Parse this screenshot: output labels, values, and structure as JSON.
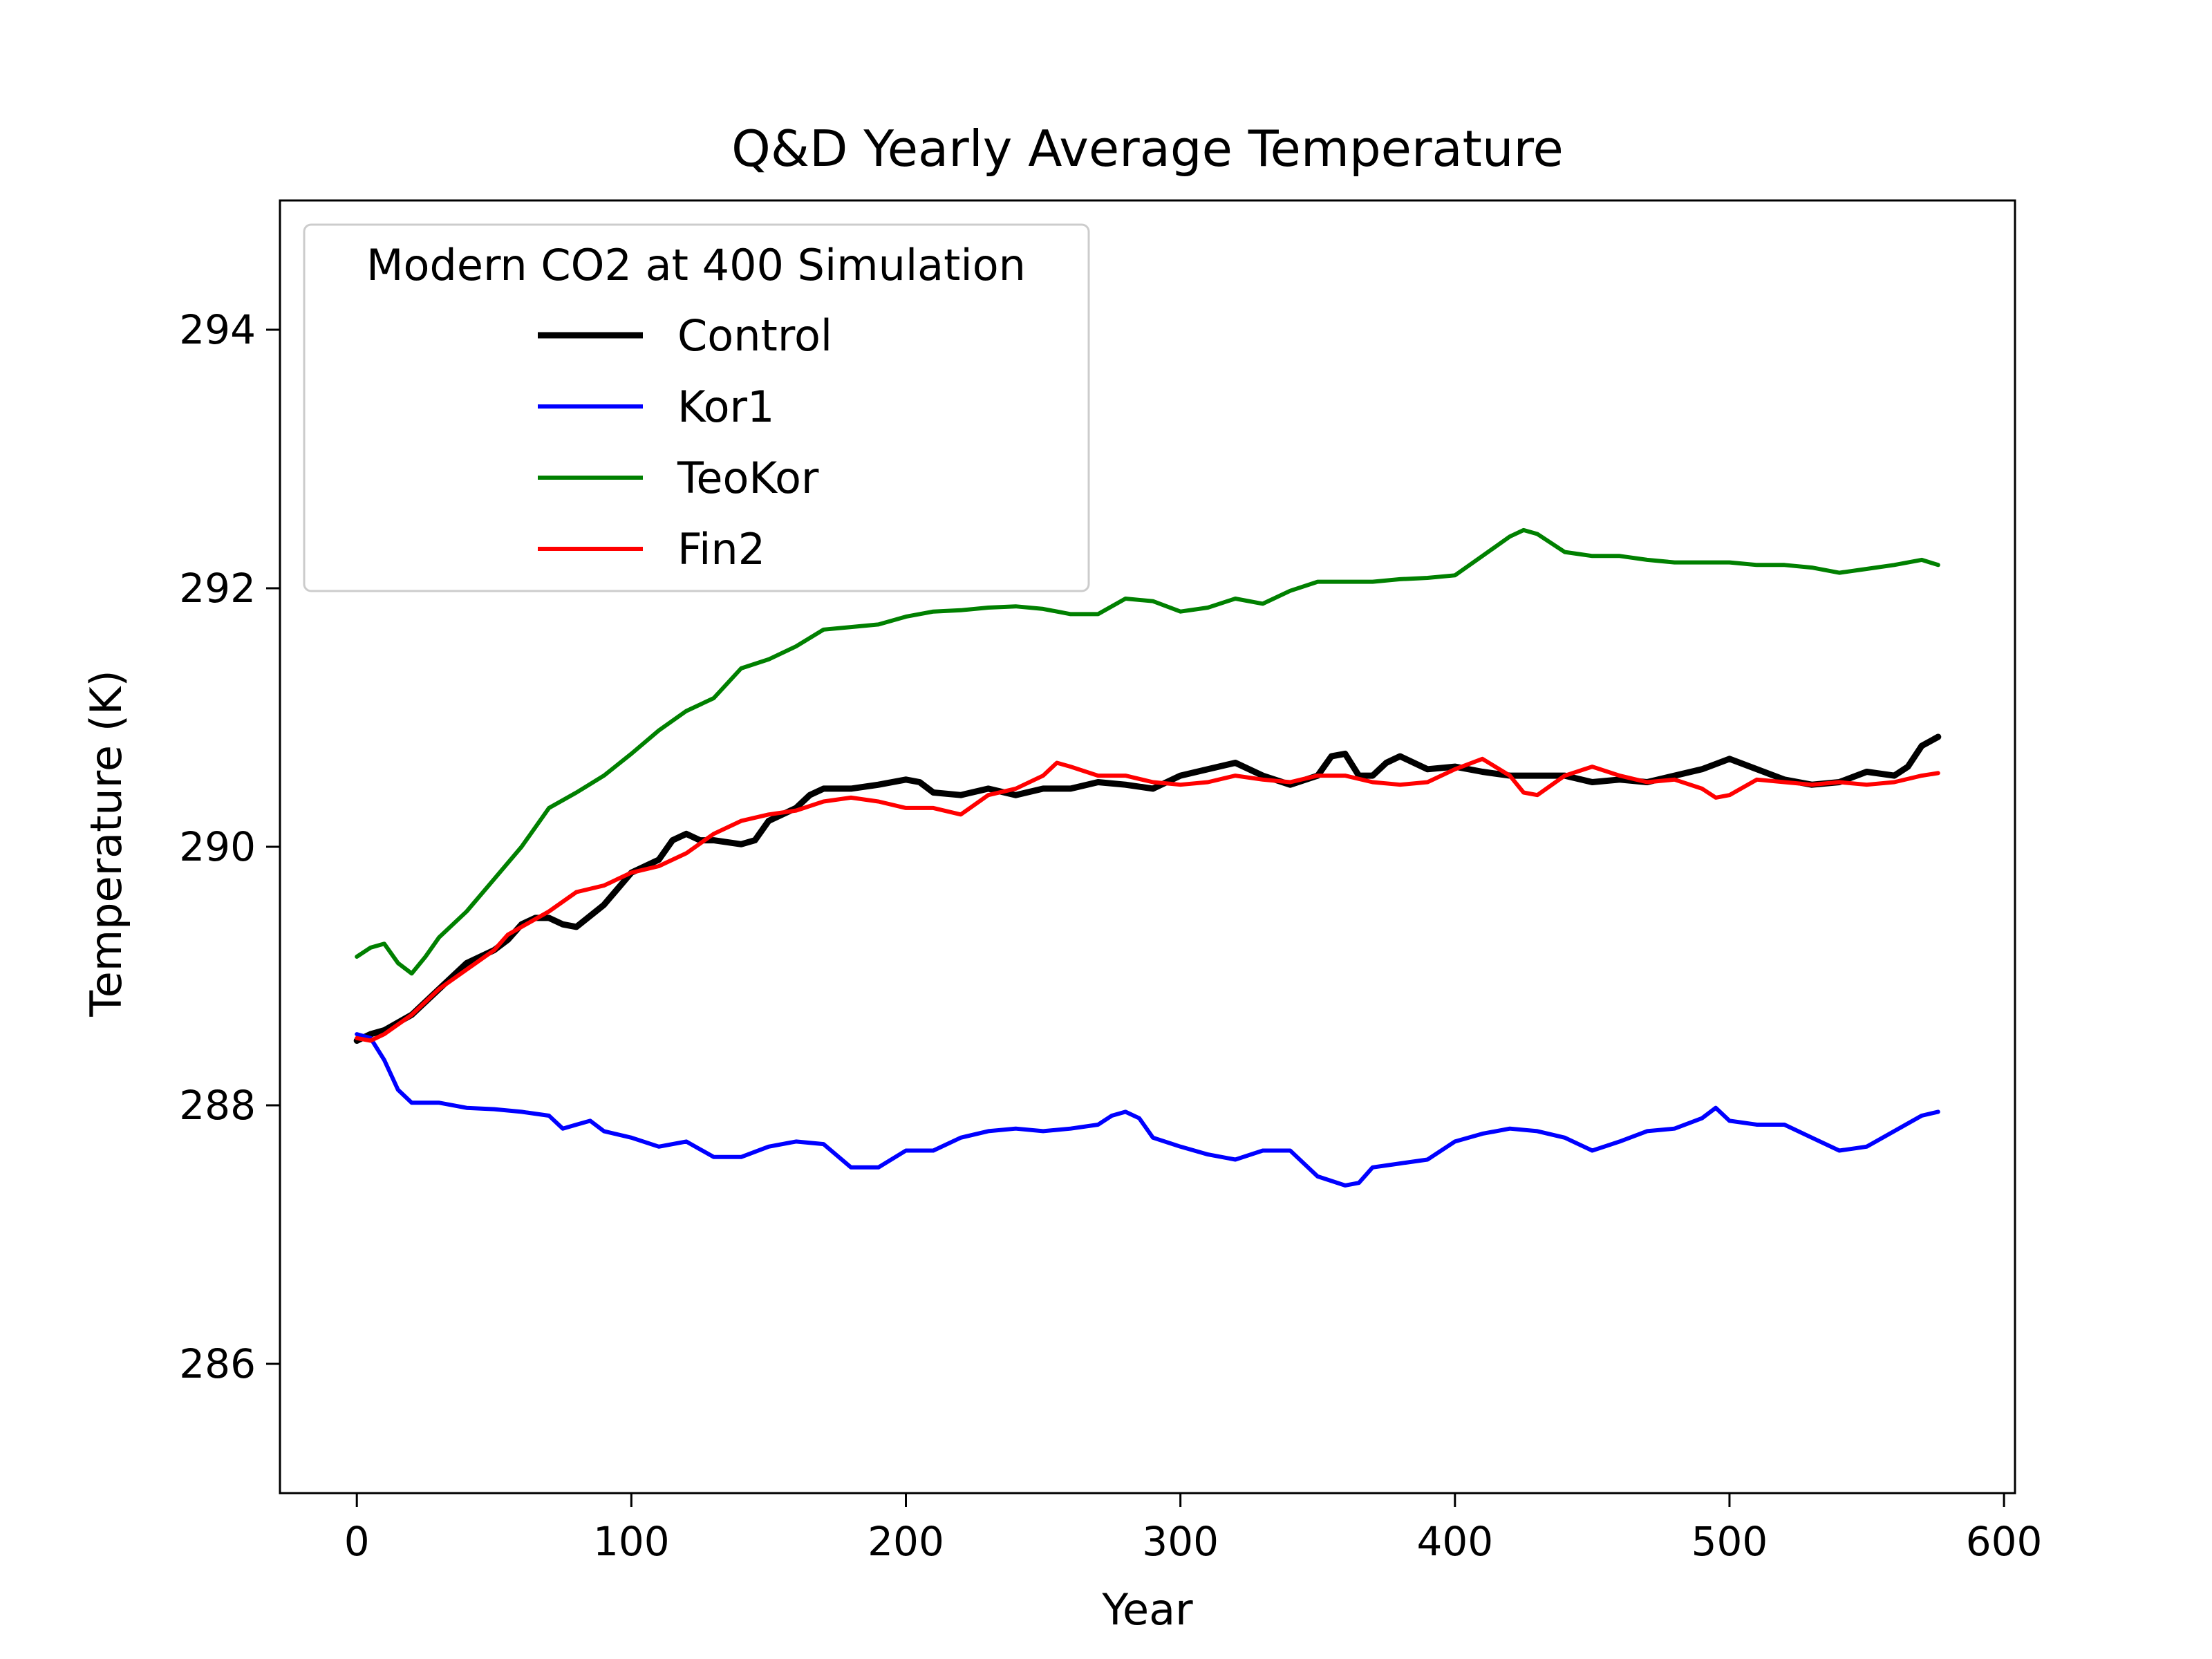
{
  "chart_data": {
    "type": "line",
    "title": "Q&D Yearly Average Temperature",
    "xlabel": "Year",
    "ylabel": "Temperature (K)",
    "xlim": [
      -28,
      604
    ],
    "ylim": [
      285,
      295
    ],
    "xticks": [
      0,
      100,
      200,
      300,
      400,
      500,
      600
    ],
    "yticks": [
      286,
      288,
      290,
      292,
      294
    ],
    "grid": false,
    "legend": {
      "title": "Modern CO2 at 400 Simulation",
      "position": "top-left"
    },
    "series": [
      {
        "name": "Control",
        "color": "#000000",
        "points": [
          [
            0,
            288.5
          ],
          [
            5,
            288.55
          ],
          [
            10,
            288.58
          ],
          [
            20,
            288.7
          ],
          [
            30,
            288.9
          ],
          [
            40,
            289.1
          ],
          [
            50,
            289.2
          ],
          [
            55,
            289.28
          ],
          [
            60,
            289.4
          ],
          [
            65,
            289.45
          ],
          [
            70,
            289.45
          ],
          [
            75,
            289.4
          ],
          [
            80,
            289.38
          ],
          [
            90,
            289.55
          ],
          [
            100,
            289.8
          ],
          [
            110,
            289.9
          ],
          [
            115,
            290.05
          ],
          [
            120,
            290.1
          ],
          [
            125,
            290.05
          ],
          [
            130,
            290.05
          ],
          [
            140,
            290.02
          ],
          [
            145,
            290.05
          ],
          [
            150,
            290.2
          ],
          [
            160,
            290.3
          ],
          [
            165,
            290.4
          ],
          [
            170,
            290.45
          ],
          [
            180,
            290.45
          ],
          [
            190,
            290.48
          ],
          [
            200,
            290.52
          ],
          [
            205,
            290.5
          ],
          [
            210,
            290.42
          ],
          [
            220,
            290.4
          ],
          [
            230,
            290.45
          ],
          [
            240,
            290.4
          ],
          [
            250,
            290.45
          ],
          [
            260,
            290.45
          ],
          [
            270,
            290.5
          ],
          [
            280,
            290.48
          ],
          [
            290,
            290.45
          ],
          [
            300,
            290.55
          ],
          [
            310,
            290.6
          ],
          [
            320,
            290.65
          ],
          [
            330,
            290.55
          ],
          [
            340,
            290.48
          ],
          [
            350,
            290.55
          ],
          [
            355,
            290.7
          ],
          [
            360,
            290.72
          ],
          [
            365,
            290.55
          ],
          [
            370,
            290.55
          ],
          [
            375,
            290.65
          ],
          [
            380,
            290.7
          ],
          [
            390,
            290.6
          ],
          [
            400,
            290.62
          ],
          [
            410,
            290.58
          ],
          [
            420,
            290.55
          ],
          [
            430,
            290.55
          ],
          [
            440,
            290.55
          ],
          [
            450,
            290.5
          ],
          [
            460,
            290.52
          ],
          [
            470,
            290.5
          ],
          [
            480,
            290.55
          ],
          [
            490,
            290.6
          ],
          [
            500,
            290.68
          ],
          [
            510,
            290.6
          ],
          [
            520,
            290.52
          ],
          [
            530,
            290.48
          ],
          [
            540,
            290.5
          ],
          [
            550,
            290.58
          ],
          [
            560,
            290.55
          ],
          [
            565,
            290.62
          ],
          [
            570,
            290.78
          ],
          [
            576,
            290.85
          ]
        ]
      },
      {
        "name": "Kor1",
        "color": "#0000ff",
        "points": [
          [
            0,
            288.55
          ],
          [
            5,
            288.52
          ],
          [
            10,
            288.35
          ],
          [
            15,
            288.12
          ],
          [
            20,
            288.02
          ],
          [
            30,
            288.02
          ],
          [
            40,
            287.98
          ],
          [
            50,
            287.97
          ],
          [
            60,
            287.95
          ],
          [
            70,
            287.92
          ],
          [
            75,
            287.82
          ],
          [
            80,
            287.85
          ],
          [
            85,
            287.88
          ],
          [
            90,
            287.8
          ],
          [
            100,
            287.75
          ],
          [
            110,
            287.68
          ],
          [
            120,
            287.72
          ],
          [
            130,
            287.6
          ],
          [
            140,
            287.6
          ],
          [
            150,
            287.68
          ],
          [
            160,
            287.72
          ],
          [
            170,
            287.7
          ],
          [
            180,
            287.52
          ],
          [
            190,
            287.52
          ],
          [
            200,
            287.65
          ],
          [
            210,
            287.65
          ],
          [
            220,
            287.75
          ],
          [
            230,
            287.8
          ],
          [
            240,
            287.82
          ],
          [
            250,
            287.8
          ],
          [
            260,
            287.82
          ],
          [
            270,
            287.85
          ],
          [
            275,
            287.92
          ],
          [
            280,
            287.95
          ],
          [
            285,
            287.9
          ],
          [
            290,
            287.75
          ],
          [
            300,
            287.68
          ],
          [
            310,
            287.62
          ],
          [
            320,
            287.58
          ],
          [
            330,
            287.65
          ],
          [
            340,
            287.65
          ],
          [
            350,
            287.45
          ],
          [
            360,
            287.38
          ],
          [
            365,
            287.4
          ],
          [
            370,
            287.52
          ],
          [
            380,
            287.55
          ],
          [
            390,
            287.58
          ],
          [
            400,
            287.72
          ],
          [
            410,
            287.78
          ],
          [
            420,
            287.82
          ],
          [
            430,
            287.8
          ],
          [
            440,
            287.75
          ],
          [
            450,
            287.65
          ],
          [
            460,
            287.72
          ],
          [
            470,
            287.8
          ],
          [
            480,
            287.82
          ],
          [
            490,
            287.9
          ],
          [
            495,
            287.98
          ],
          [
            500,
            287.88
          ],
          [
            510,
            287.85
          ],
          [
            520,
            287.85
          ],
          [
            530,
            287.75
          ],
          [
            540,
            287.65
          ],
          [
            550,
            287.68
          ],
          [
            560,
            287.8
          ],
          [
            570,
            287.92
          ],
          [
            576,
            287.95
          ]
        ]
      },
      {
        "name": "TeoKor",
        "color": "#008000",
        "points": [
          [
            0,
            289.15
          ],
          [
            5,
            289.22
          ],
          [
            10,
            289.25
          ],
          [
            15,
            289.1
          ],
          [
            20,
            289.02
          ],
          [
            25,
            289.15
          ],
          [
            30,
            289.3
          ],
          [
            40,
            289.5
          ],
          [
            50,
            289.75
          ],
          [
            60,
            290.0
          ],
          [
            70,
            290.3
          ],
          [
            80,
            290.42
          ],
          [
            90,
            290.55
          ],
          [
            100,
            290.72
          ],
          [
            110,
            290.9
          ],
          [
            120,
            291.05
          ],
          [
            130,
            291.15
          ],
          [
            140,
            291.38
          ],
          [
            150,
            291.45
          ],
          [
            160,
            291.55
          ],
          [
            170,
            291.68
          ],
          [
            180,
            291.7
          ],
          [
            190,
            291.72
          ],
          [
            200,
            291.78
          ],
          [
            210,
            291.82
          ],
          [
            220,
            291.83
          ],
          [
            230,
            291.85
          ],
          [
            240,
            291.86
          ],
          [
            250,
            291.84
          ],
          [
            260,
            291.8
          ],
          [
            270,
            291.8
          ],
          [
            280,
            291.92
          ],
          [
            290,
            291.9
          ],
          [
            300,
            291.82
          ],
          [
            310,
            291.85
          ],
          [
            320,
            291.92
          ],
          [
            330,
            291.88
          ],
          [
            340,
            291.98
          ],
          [
            350,
            292.05
          ],
          [
            360,
            292.05
          ],
          [
            370,
            292.05
          ],
          [
            380,
            292.07
          ],
          [
            390,
            292.08
          ],
          [
            400,
            292.1
          ],
          [
            410,
            292.25
          ],
          [
            420,
            292.4
          ],
          [
            425,
            292.45
          ],
          [
            430,
            292.42
          ],
          [
            440,
            292.28
          ],
          [
            450,
            292.25
          ],
          [
            460,
            292.25
          ],
          [
            470,
            292.22
          ],
          [
            480,
            292.2
          ],
          [
            490,
            292.2
          ],
          [
            500,
            292.2
          ],
          [
            510,
            292.18
          ],
          [
            520,
            292.18
          ],
          [
            530,
            292.16
          ],
          [
            540,
            292.12
          ],
          [
            550,
            292.15
          ],
          [
            560,
            292.18
          ],
          [
            570,
            292.22
          ],
          [
            576,
            292.18
          ]
        ]
      },
      {
        "name": "Fin2",
        "color": "#ff0000",
        "points": [
          [
            0,
            288.52
          ],
          [
            5,
            288.5
          ],
          [
            10,
            288.55
          ],
          [
            20,
            288.7
          ],
          [
            30,
            288.9
          ],
          [
            40,
            289.05
          ],
          [
            50,
            289.2
          ],
          [
            55,
            289.32
          ],
          [
            60,
            289.38
          ],
          [
            70,
            289.5
          ],
          [
            80,
            289.65
          ],
          [
            90,
            289.7
          ],
          [
            100,
            289.8
          ],
          [
            110,
            289.85
          ],
          [
            120,
            289.95
          ],
          [
            130,
            290.1
          ],
          [
            140,
            290.2
          ],
          [
            150,
            290.25
          ],
          [
            160,
            290.28
          ],
          [
            170,
            290.35
          ],
          [
            180,
            290.38
          ],
          [
            190,
            290.35
          ],
          [
            200,
            290.3
          ],
          [
            210,
            290.3
          ],
          [
            220,
            290.25
          ],
          [
            230,
            290.4
          ],
          [
            240,
            290.45
          ],
          [
            250,
            290.55
          ],
          [
            255,
            290.65
          ],
          [
            260,
            290.62
          ],
          [
            270,
            290.55
          ],
          [
            280,
            290.55
          ],
          [
            290,
            290.5
          ],
          [
            300,
            290.48
          ],
          [
            310,
            290.5
          ],
          [
            320,
            290.55
          ],
          [
            330,
            290.52
          ],
          [
            340,
            290.5
          ],
          [
            350,
            290.55
          ],
          [
            360,
            290.55
          ],
          [
            370,
            290.5
          ],
          [
            380,
            290.48
          ],
          [
            390,
            290.5
          ],
          [
            400,
            290.6
          ],
          [
            410,
            290.68
          ],
          [
            420,
            290.55
          ],
          [
            425,
            290.42
          ],
          [
            430,
            290.4
          ],
          [
            440,
            290.55
          ],
          [
            450,
            290.62
          ],
          [
            460,
            290.55
          ],
          [
            470,
            290.5
          ],
          [
            480,
            290.52
          ],
          [
            490,
            290.45
          ],
          [
            495,
            290.38
          ],
          [
            500,
            290.4
          ],
          [
            510,
            290.52
          ],
          [
            520,
            290.5
          ],
          [
            530,
            290.48
          ],
          [
            540,
            290.5
          ],
          [
            550,
            290.48
          ],
          [
            560,
            290.5
          ],
          [
            570,
            290.55
          ],
          [
            576,
            290.57
          ]
        ]
      }
    ]
  }
}
